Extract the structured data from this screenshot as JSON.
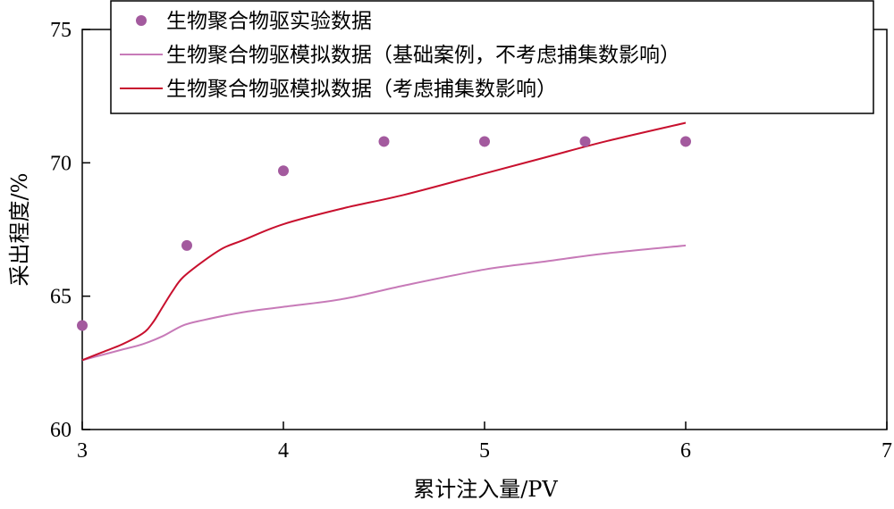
{
  "chart_data": {
    "type": "line",
    "xlabel": "累计注入量/PV",
    "ylabel": "采出程度/%",
    "xlim": [
      3,
      7
    ],
    "ylim": [
      60,
      75
    ],
    "x_ticks": [
      "3",
      "4",
      "5",
      "6",
      "7"
    ],
    "y_ticks": [
      "60",
      "65",
      "70",
      "75"
    ],
    "grid": false,
    "legend_position": "top",
    "series": [
      {
        "name": "生物聚合物驱实验数据",
        "kind": "scatter",
        "color": "#a35a9e",
        "x": [
          3.0,
          3.52,
          4.0,
          4.5,
          5.0,
          5.5,
          6.0
        ],
        "y": [
          63.9,
          66.9,
          69.7,
          70.8,
          70.8,
          70.8,
          70.8
        ]
      },
      {
        "name": "生物聚合物驱模拟数据（基础案例，不考虑捕集数影响）",
        "kind": "line",
        "color": "#c77ab8",
        "x": [
          3.0,
          3.1,
          3.2,
          3.3,
          3.4,
          3.5,
          3.6,
          3.8,
          4.0,
          4.3,
          4.6,
          5.0,
          5.3,
          5.6,
          6.0
        ],
        "y": [
          62.6,
          62.8,
          63.0,
          63.2,
          63.5,
          63.9,
          64.1,
          64.4,
          64.6,
          64.9,
          65.4,
          66.0,
          66.3,
          66.6,
          66.9
        ]
      },
      {
        "name": "生物聚合物驱模拟数据（考虑捕集数影响）",
        "kind": "line",
        "color": "#c8102e",
        "x": [
          3.0,
          3.1,
          3.2,
          3.3,
          3.35,
          3.4,
          3.45,
          3.5,
          3.6,
          3.7,
          3.8,
          4.0,
          4.3,
          4.6,
          5.0,
          5.3,
          5.6,
          6.0
        ],
        "y": [
          62.6,
          62.9,
          63.2,
          63.6,
          64.0,
          64.6,
          65.2,
          65.7,
          66.3,
          66.8,
          67.1,
          67.7,
          68.3,
          68.8,
          69.6,
          70.2,
          70.8,
          71.5
        ]
      }
    ]
  }
}
